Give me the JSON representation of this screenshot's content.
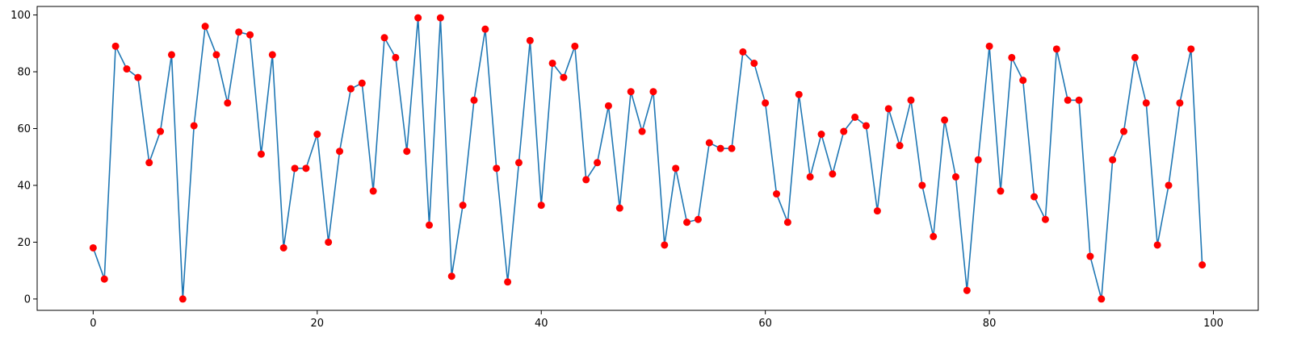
{
  "chart_data": {
    "type": "line",
    "title": "",
    "xlabel": "",
    "ylabel": "",
    "xlim": [
      -5,
      104
    ],
    "ylim": [
      -4,
      103
    ],
    "x_ticks": [
      0,
      20,
      40,
      60,
      80,
      100
    ],
    "y_ticks": [
      0,
      20,
      40,
      60,
      80,
      100
    ],
    "grid": false,
    "line_color": "#1f77b4",
    "marker_color": "#ff0000",
    "x": [
      0,
      1,
      2,
      3,
      4,
      5,
      6,
      7,
      8,
      9,
      10,
      11,
      12,
      13,
      14,
      15,
      16,
      17,
      18,
      19,
      20,
      21,
      22,
      23,
      24,
      25,
      26,
      27,
      28,
      29,
      30,
      31,
      32,
      33,
      34,
      35,
      36,
      37,
      38,
      39,
      40,
      41,
      42,
      43,
      44,
      45,
      46,
      47,
      48,
      49,
      50,
      51,
      52,
      53,
      54,
      55,
      56,
      57,
      58,
      59,
      60,
      61,
      62,
      63,
      64,
      65,
      66,
      67,
      68,
      69,
      70,
      71,
      72,
      73,
      74,
      75,
      76,
      77,
      78,
      79,
      80,
      81,
      82,
      83,
      84,
      85,
      86,
      87,
      88,
      89,
      90,
      91,
      92,
      93,
      94,
      95,
      96,
      97,
      98,
      99
    ],
    "y": [
      18,
      7,
      89,
      81,
      78,
      48,
      59,
      86,
      0,
      61,
      96,
      86,
      69,
      94,
      93,
      51,
      86,
      18,
      46,
      46,
      58,
      20,
      52,
      74,
      76,
      38,
      92,
      85,
      52,
      99,
      26,
      99,
      8,
      33,
      70,
      95,
      46,
      6,
      48,
      91,
      33,
      83,
      78,
      89,
      42,
      48,
      68,
      32,
      73,
      59,
      73,
      19,
      46,
      27,
      28,
      55,
      53,
      53,
      87,
      83,
      69,
      37,
      27,
      72,
      43,
      58,
      44,
      59,
      64,
      61,
      31,
      67,
      54,
      70,
      40,
      22,
      63,
      43,
      3,
      49,
      89,
      38,
      85,
      77,
      36,
      28,
      88,
      70,
      70,
      15,
      0,
      49,
      59,
      85,
      69,
      19,
      40,
      69,
      88,
      12
    ]
  }
}
